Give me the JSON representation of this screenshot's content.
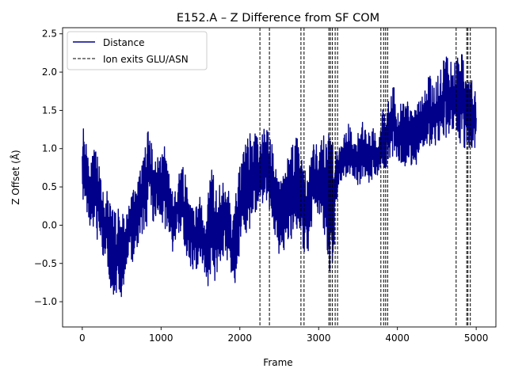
{
  "chart_data": {
    "type": "line",
    "title": "E152.A – Z Difference from SF COM",
    "xlabel": "Frame",
    "ylabel": "Z Offset (Å)",
    "xlim": [
      -250,
      5250
    ],
    "ylim": [
      -1.33,
      2.58
    ],
    "xticks": [
      0,
      1000,
      2000,
      3000,
      4000,
      5000
    ],
    "yticks": [
      -1.0,
      -0.5,
      0.0,
      0.5,
      1.0,
      1.5,
      2.0,
      2.5
    ],
    "xtick_labels": [
      "0",
      "1000",
      "2000",
      "3000",
      "4000",
      "5000"
    ],
    "ytick_labels": [
      "−1.0",
      "−0.5",
      "0.0",
      "0.5",
      "1.0",
      "1.5",
      "2.0",
      "2.5"
    ],
    "grid": false,
    "legend_position": "top-left",
    "legend": [
      {
        "label": "Distance",
        "style": "solid",
        "color": "#00008b"
      },
      {
        "label": "Ion exits GLU/ASN",
        "style": "dashed",
        "color": "#000000"
      }
    ],
    "series": [
      {
        "name": "Distance",
        "color": "#00008b",
        "x": [
          0,
          50,
          100,
          150,
          200,
          250,
          300,
          350,
          400,
          450,
          500,
          550,
          600,
          650,
          700,
          750,
          800,
          850,
          900,
          950,
          1000,
          1050,
          1100,
          1150,
          1200,
          1250,
          1300,
          1350,
          1400,
          1450,
          1500,
          1550,
          1600,
          1650,
          1700,
          1750,
          1800,
          1850,
          1900,
          1950,
          2000,
          2050,
          2100,
          2150,
          2200,
          2250,
          2300,
          2350,
          2400,
          2450,
          2500,
          2550,
          2600,
          2650,
          2700,
          2750,
          2800,
          2850,
          2900,
          2950,
          3000,
          3050,
          3100,
          3150,
          3200,
          3250,
          3300,
          3350,
          3400,
          3450,
          3500,
          3550,
          3600,
          3650,
          3700,
          3750,
          3800,
          3850,
          3900,
          3950,
          4000,
          4050,
          4100,
          4150,
          4200,
          4250,
          4300,
          4350,
          4400,
          4450,
          4500,
          4550,
          4600,
          4650,
          4700,
          4750,
          4800,
          4850,
          4900,
          4950,
          5000
        ],
        "lo": [
          0.35,
          0.2,
          -0.1,
          0.0,
          -0.25,
          -0.35,
          -0.6,
          -0.85,
          -1.05,
          -0.8,
          -1.15,
          -0.6,
          -0.4,
          -0.5,
          -0.3,
          -0.1,
          -0.2,
          0.2,
          0.05,
          0.1,
          0.1,
          -0.1,
          -0.2,
          -0.4,
          -0.1,
          -0.1,
          -0.3,
          -0.5,
          -0.6,
          -0.6,
          -0.5,
          -0.6,
          -0.85,
          -0.7,
          -0.75,
          -0.6,
          -0.4,
          -0.6,
          -0.7,
          -0.8,
          -0.3,
          0.0,
          -0.2,
          -0.1,
          0.1,
          0.2,
          0.3,
          0.3,
          0.0,
          -0.2,
          -0.4,
          -0.4,
          -0.2,
          -0.2,
          -0.1,
          -0.1,
          -0.4,
          -0.5,
          -0.1,
          0.1,
          0.1,
          -0.2,
          -0.4,
          -0.7,
          -0.3,
          0.5,
          0.6,
          0.6,
          0.65,
          0.6,
          0.5,
          0.55,
          0.6,
          0.55,
          0.6,
          0.6,
          0.7,
          0.7,
          0.7,
          0.9,
          0.8,
          0.75,
          0.75,
          0.8,
          0.7,
          0.8,
          0.9,
          0.9,
          1.0,
          1.0,
          1.05,
          1.05,
          1.2,
          1.05,
          1.2,
          1.1,
          1.0,
          1.0,
          1.0,
          1.0,
          0.95
        ],
        "hi": [
          1.35,
          1.25,
          0.8,
          1.0,
          0.9,
          0.5,
          0.5,
          0.3,
          0.25,
          0.2,
          0.3,
          0.1,
          0.4,
          0.5,
          0.6,
          0.8,
          1.1,
          1.3,
          0.9,
          0.9,
          1.05,
          1.1,
          0.8,
          0.4,
          0.55,
          0.8,
          0.75,
          0.3,
          0.3,
          0.25,
          0.4,
          0.0,
          0.5,
          0.8,
          0.5,
          0.55,
          0.7,
          0.6,
          0.0,
          0.5,
          0.8,
          1.0,
          1.2,
          1.2,
          1.3,
          1.05,
          1.25,
          1.4,
          1.2,
          0.75,
          0.7,
          0.8,
          0.9,
          1.1,
          1.3,
          1.15,
          0.9,
          0.6,
          1.0,
          1.1,
          1.0,
          1.15,
          1.3,
          1.35,
          1.25,
          1.0,
          1.2,
          1.35,
          1.3,
          1.1,
          1.25,
          1.35,
          1.3,
          1.2,
          1.3,
          1.1,
          1.5,
          1.6,
          1.7,
          1.85,
          1.5,
          1.6,
          1.7,
          1.55,
          1.5,
          1.6,
          1.7,
          1.8,
          2.1,
          1.8,
          1.9,
          2.1,
          2.2,
          2.3,
          2.0,
          2.3,
          2.35,
          2.3,
          1.9,
          1.9,
          1.85
        ]
      }
    ],
    "vlines": [
      2255,
      2375,
      2775,
      2815,
      3130,
      3150,
      3175,
      3210,
      3240,
      3790,
      3825,
      3850,
      3875,
      4745,
      4880,
      4895,
      4925
    ]
  }
}
